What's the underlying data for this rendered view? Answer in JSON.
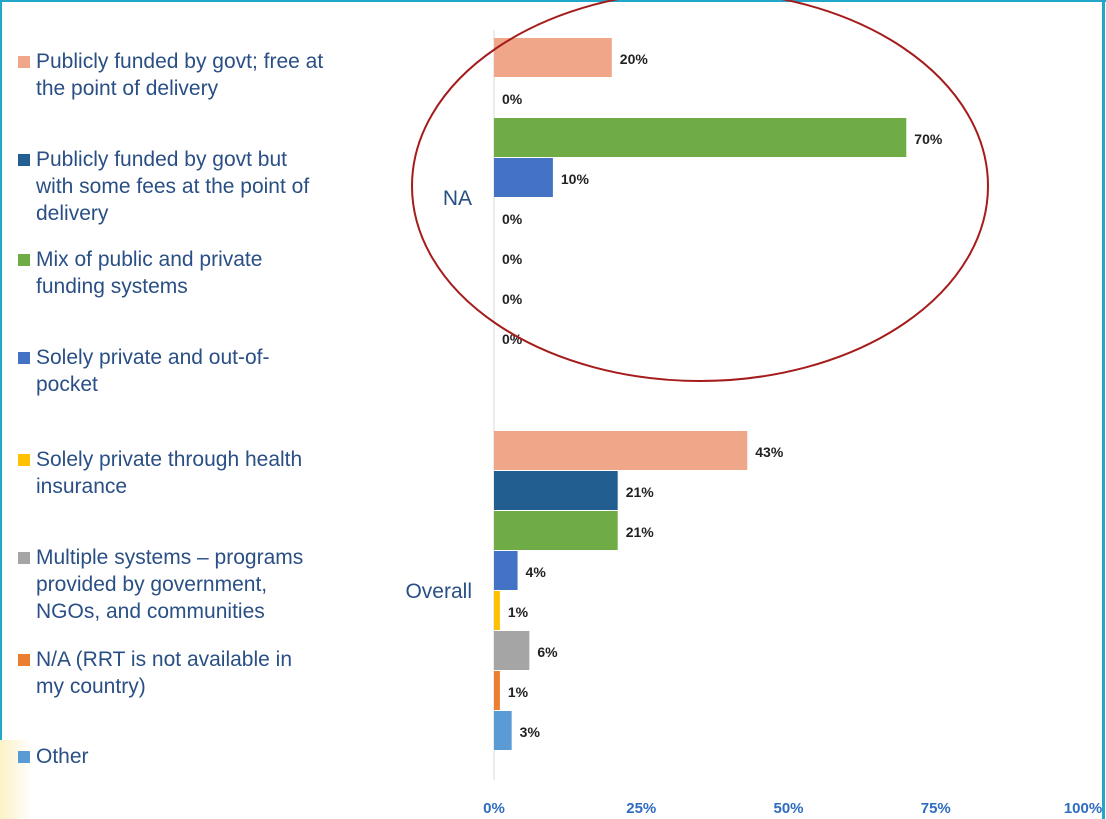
{
  "chart_data": {
    "type": "bar",
    "orientation": "horizontal",
    "categories": [
      "NA",
      "Overall"
    ],
    "series": [
      {
        "name": "Publicly funded by govt; free at\nthe point of delivery",
        "color": "#f0a689",
        "values": [
          20,
          43
        ],
        "labels": [
          "20%",
          "43%"
        ]
      },
      {
        "name": "Publicly funded by govt but\nwith some fees at the point of\ndelivery",
        "color": "#225e8f",
        "values": [
          0,
          21
        ],
        "labels": [
          "0%",
          "21%"
        ]
      },
      {
        "name": "Mix of public and private\nfunding systems",
        "color": "#6fac46",
        "values": [
          70,
          21
        ],
        "labels": [
          "70%",
          "21%"
        ]
      },
      {
        "name": "Solely private and out-of-\npocket",
        "color": "#4472c4",
        "values": [
          10,
          4
        ],
        "labels": [
          "10%",
          "4%"
        ]
      },
      {
        "name": "Solely private through health\ninsurance",
        "color": "#ffc000",
        "values": [
          0,
          1
        ],
        "labels": [
          "0%",
          "1%"
        ]
      },
      {
        "name": "Multiple systems – programs\nprovided by government,\nNGOs, and communities",
        "color": "#a5a5a5",
        "values": [
          0,
          6
        ],
        "labels": [
          "0%",
          "6%"
        ]
      },
      {
        "name": "N/A (RRT is not available in\nmy country)",
        "color": "#ed7d31",
        "values": [
          0,
          1
        ],
        "labels": [
          "0%",
          "1%"
        ]
      },
      {
        "name": "Other",
        "color": "#5b9bd5",
        "values": [
          0,
          3
        ],
        "labels": [
          "0%",
          "3%"
        ]
      }
    ],
    "xlim": [
      0,
      100
    ],
    "x_ticks": [
      "0%",
      "25%",
      "50%",
      "75%",
      "100%"
    ],
    "legend_position": "left",
    "grid": false,
    "annotation": {
      "shape": "ellipse",
      "color": "#a51c1c",
      "highlights": "NA"
    }
  }
}
